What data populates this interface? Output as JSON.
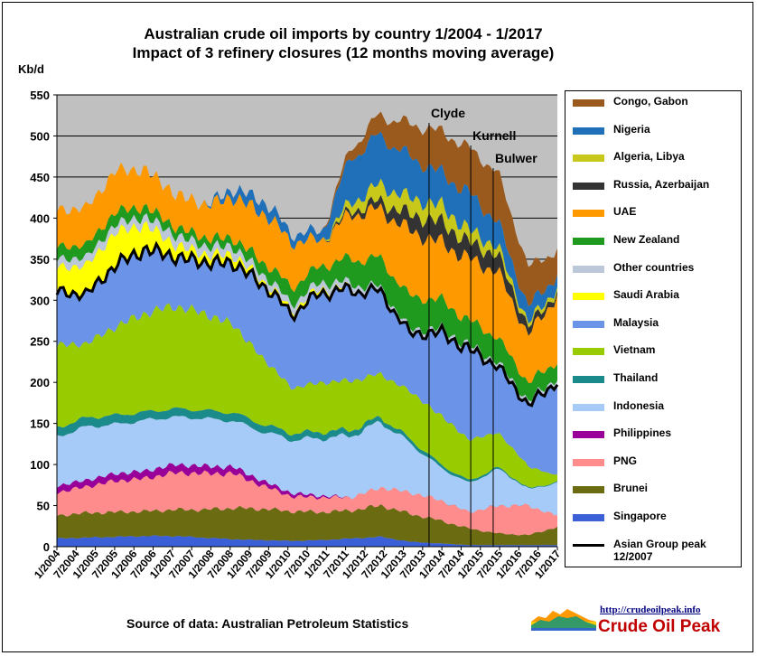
{
  "title_line1": "Australian crude oil imports  by country 1/2004 - 1/2017",
  "title_line2": "Impact of 3 refinery closures (12 months moving average)",
  "source": "Source of data: Australian Petroleum Statistics",
  "site_url": "http://crudeoilpeak.info",
  "site_name": "Crude Oil Peak",
  "chart_data": {
    "type": "area",
    "stacked": true,
    "ylabel": "Kb/d",
    "ylim": [
      0,
      550
    ],
    "yticks": [
      0,
      50,
      100,
      150,
      200,
      250,
      300,
      350,
      400,
      450,
      500,
      550
    ],
    "grid": true,
    "plot_background": "#c0c0c0",
    "legend_position": "right",
    "x_tick_labels": [
      "1/2004",
      "7/2004",
      "1/2005",
      "7/2005",
      "1/2006",
      "7/2006",
      "1/2007",
      "7/2007",
      "1/2008",
      "7/2008",
      "1/2009",
      "7/2009",
      "1/2010",
      "7/2010",
      "1/2011",
      "7/2011",
      "1/2012",
      "7/2012",
      "1/2013",
      "7/2013",
      "1/2014",
      "7/2014",
      "1/2015",
      "7/2015",
      "1/2016",
      "7/2016",
      "1/2017"
    ],
    "series_order_bottom_to_top": [
      "Singapore",
      "Brunei",
      "PNG",
      "Philippines",
      "Indonesia",
      "Thailand",
      "Vietnam",
      "Malaysia",
      "Saudi Arabia",
      "Other countries",
      "New Zealand",
      "UAE",
      "Russia, Azerbaijan",
      "Algeria, Libya",
      "Nigeria",
      "Congo, Gabon"
    ],
    "series": [
      {
        "name": "Singapore",
        "color": "#3b5fd6",
        "values": [
          10,
          11,
          12,
          13,
          13,
          11,
          9,
          8,
          7,
          8,
          10,
          12,
          6,
          4,
          2,
          2,
          2,
          2
        ]
      },
      {
        "name": "Brunei",
        "color": "#6b6b12",
        "values": [
          28,
          30,
          30,
          30,
          32,
          34,
          38,
          38,
          36,
          34,
          34,
          38,
          34,
          28,
          20,
          14,
          12,
          22
        ]
      },
      {
        "name": "PNG",
        "color": "#ff8c8c",
        "values": [
          28,
          32,
          38,
          40,
          45,
          44,
          42,
          28,
          18,
          18,
          16,
          22,
          26,
          25,
          20,
          34,
          36,
          14
        ]
      },
      {
        "name": "Philippines",
        "color": "#990099",
        "values": [
          8,
          8,
          9,
          9,
          10,
          9,
          8,
          6,
          4,
          2,
          0,
          0,
          0,
          0,
          0,
          0,
          0,
          0
        ]
      },
      {
        "name": "Indonesia",
        "color": "#a6cbf8",
        "values": [
          60,
          65,
          60,
          62,
          58,
          58,
          56,
          60,
          65,
          70,
          75,
          80,
          60,
          40,
          35,
          45,
          20,
          40
        ]
      },
      {
        "name": "Thailand",
        "color": "#1a8a8a",
        "values": [
          11,
          11,
          11,
          10,
          10,
          10,
          10,
          9,
          8,
          8,
          7,
          6,
          5,
          4,
          3,
          2,
          1,
          1
        ]
      },
      {
        "name": "Vietnam",
        "color": "#99cc00",
        "values": [
          100,
          90,
          108,
          120,
          125,
          118,
          107,
          80,
          55,
          60,
          60,
          52,
          58,
          60,
          50,
          42,
          27,
          8
        ]
      },
      {
        "name": "Malaysia",
        "color": "#6b94e8",
        "values": [
          65,
          60,
          75,
          78,
          60,
          62,
          75,
          90,
          90,
          110,
          110,
          100,
          70,
          100,
          110,
          80,
          74,
          115
        ]
      },
      {
        "name": "Saudi Arabia",
        "color": "#ffff00",
        "values": [
          30,
          35,
          40,
          30,
          15,
          10,
          10,
          5,
          5,
          5,
          2,
          0,
          0,
          0,
          0,
          0,
          0,
          0
        ]
      },
      {
        "name": "Other countries",
        "color": "#bcc8d9",
        "values": [
          10,
          10,
          10,
          10,
          12,
          10,
          10,
          8,
          8,
          8,
          6,
          5,
          5,
          5,
          5,
          5,
          5,
          5
        ]
      },
      {
        "name": "New Zealand",
        "color": "#1f9a1f",
        "values": [
          15,
          15,
          15,
          12,
          10,
          10,
          10,
          15,
          20,
          20,
          30,
          35,
          40,
          35,
          30,
          30,
          22,
          20
        ]
      },
      {
        "name": "UAE",
        "color": "#ff9900",
        "values": [
          45,
          45,
          50,
          45,
          40,
          40,
          50,
          60,
          55,
          30,
          55,
          60,
          80,
          70,
          75,
          80,
          58,
          80
        ]
      },
      {
        "name": "Russia, Azerbaijan",
        "color": "#333333",
        "values": [
          0,
          0,
          0,
          0,
          0,
          0,
          0,
          0,
          0,
          0,
          5,
          10,
          20,
          25,
          20,
          20,
          10,
          5
        ]
      },
      {
        "name": "Algeria, Libya",
        "color": "#c8c81a",
        "values": [
          0,
          0,
          0,
          0,
          0,
          0,
          0,
          0,
          0,
          0,
          10,
          20,
          20,
          20,
          15,
          10,
          5,
          5
        ]
      },
      {
        "name": "Nigeria",
        "color": "#1f70b8",
        "values": [
          0,
          0,
          0,
          0,
          0,
          0,
          10,
          15,
          10,
          10,
          55,
          60,
          50,
          40,
          45,
          30,
          20,
          15
        ]
      },
      {
        "name": "Congo, Gabon",
        "color": "#9a5a1e",
        "values": [
          0,
          0,
          0,
          0,
          0,
          0,
          0,
          0,
          0,
          0,
          12,
          25,
          40,
          50,
          55,
          60,
          48,
          30
        ]
      }
    ],
    "asian_group": {
      "name": "Asian Group peak 12/2007",
      "color": "#000000"
    },
    "annotations": [
      {
        "text": "Clyde",
        "date": "9/2013"
      },
      {
        "text": "Kurnell",
        "date": "10/2014"
      },
      {
        "text": "Bulwer",
        "date": "5/2015"
      }
    ]
  }
}
